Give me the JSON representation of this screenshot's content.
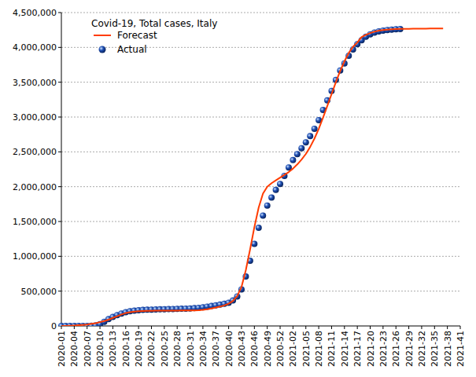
{
  "chart_data": {
    "type": "line",
    "title": "Covid-19, Total cases, Italy",
    "categories": [
      "2020-01",
      null,
      null,
      "2020-04",
      null,
      null,
      "2020-07",
      null,
      null,
      "2020-10",
      null,
      null,
      "2020-13",
      null,
      null,
      "2020-16",
      null,
      null,
      "2020-19",
      null,
      null,
      "2020-22",
      null,
      null,
      "2020-25",
      null,
      null,
      "2020-28",
      null,
      null,
      "2020-31",
      null,
      null,
      "2020-34",
      null,
      null,
      "2020-37",
      null,
      null,
      "2020-40",
      null,
      null,
      "2020-43",
      null,
      null,
      "2020-46",
      null,
      null,
      "2020-49",
      null,
      null,
      "2020-52",
      null,
      null,
      "2021-02",
      null,
      null,
      "2021-05",
      null,
      null,
      "2021-08",
      null,
      null,
      "2021-11",
      null,
      null,
      "2021-14",
      null,
      null,
      "2021-17",
      null,
      null,
      "2021-20",
      null,
      null,
      "2021-23",
      null,
      null,
      "2021-26",
      null,
      null,
      "2021-29",
      null,
      null,
      "2021-32",
      null,
      null,
      "2021-35",
      null,
      null,
      "2021-38",
      null,
      null,
      "2021-41"
    ],
    "series": [
      {
        "name": "Forecast",
        "type": "line",
        "color": "#ff3c00",
        "line_style": "solid",
        "values": [
          0,
          0,
          3000,
          6000,
          10000,
          15000,
          20000,
          30000,
          40000,
          55000,
          70000,
          90000,
          115000,
          140000,
          165000,
          185000,
          198000,
          207000,
          212000,
          215000,
          217000,
          218000,
          219000,
          219000,
          220000,
          220000,
          221000,
          221000,
          222000,
          222000,
          223000,
          224000,
          226000,
          230000,
          240000,
          252000,
          264000,
          278000,
          295000,
          320000,
          360000,
          430000,
          560000,
          800000,
          1100000,
          1420000,
          1700000,
          1900000,
          2000000,
          2050000,
          2090000,
          2130000,
          2170000,
          2210000,
          2260000,
          2320000,
          2390000,
          2470000,
          2570000,
          2690000,
          2830000,
          2990000,
          3160000,
          3330000,
          3500000,
          3660000,
          3800000,
          3920000,
          4010000,
          4070000,
          4150000,
          4180000,
          4205000,
          4225000,
          4240000,
          4250000,
          4256000,
          4260000,
          4263000,
          4265000,
          4266000,
          4267000,
          4268000,
          4269000,
          4270000,
          4270000,
          4271000,
          4271000,
          4272000,
          4272000,
          null,
          null,
          null,
          null
        ]
      },
      {
        "name": "Actual",
        "type": "scatter",
        "color": "#1f4fb4",
        "marker": "circle",
        "values": [
          0,
          0,
          0,
          0,
          0,
          0,
          0,
          1694,
          7375,
          24747,
          59138,
          97689,
          128948,
          156363,
          178972,
          197675,
          210717,
          219070,
          225435,
          229858,
          232997,
          234998,
          236989,
          238499,
          240136,
          241819,
          243506,
          245338,
          246776,
          248803,
          251713,
          255278,
          260298,
          268218,
          277634,
          286297,
          296569,
          306235,
          317409,
          333940,
          365467,
          423578,
          525782,
          709335,
          935104,
          1178529,
          1408868,
          1585178,
          1728878,
          1843712,
          1953185,
          2038759,
          2155446,
          2276491,
          2381277,
          2466813,
          2553032,
          2636738,
          2725106,
          2832162,
          2955434,
          3101093,
          3238394,
          3376376,
          3532057,
          3668264,
          3769814,
          3878994,
          3971114,
          4044762,
          4102921,
          4153374,
          4188190,
          4213055,
          4230153,
          4241760,
          4249755,
          4255434,
          4259909,
          4262000,
          null,
          null,
          null,
          null,
          null,
          null,
          null,
          null,
          null,
          null,
          null,
          null,
          null,
          null
        ]
      }
    ],
    "ylim": [
      0,
      4500000
    ],
    "yticks": [
      0,
      {
        "value": 500000,
        "label": "500,000"
      },
      {
        "value": 1000000,
        "label": "1,000,000"
      },
      {
        "value": 1500000,
        "label": "1,500,000"
      },
      {
        "value": 2000000,
        "label": "2,000,000"
      },
      {
        "value": 2500000,
        "label": "2,500,000"
      },
      {
        "value": 3000000,
        "label": "3,000,000"
      },
      {
        "value": 3500000,
        "label": "3,500,000"
      },
      {
        "value": 4000000,
        "label": "4,000,000"
      },
      {
        "value": 4500000,
        "label": "4,500,000"
      }
    ],
    "grid": true,
    "legend": "top-left"
  }
}
